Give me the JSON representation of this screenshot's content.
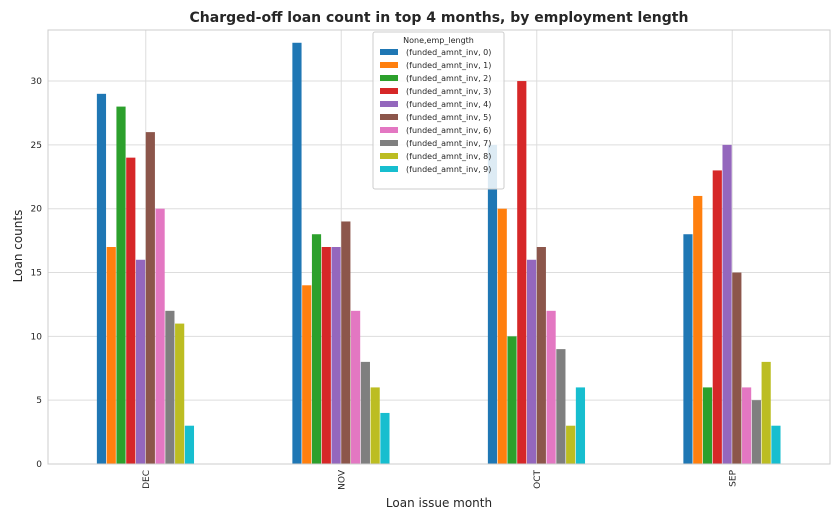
{
  "chart_data": {
    "type": "bar",
    "title": "Charged-off loan count in top 4 months, by employment length",
    "xlabel": "Loan issue month",
    "ylabel": "Loan counts",
    "categories": [
      "DEC",
      "NOV",
      "OCT",
      "SEP"
    ],
    "ylim": [
      0,
      34
    ],
    "yticks": [
      0,
      5,
      10,
      15,
      20,
      25,
      30
    ],
    "grid": true,
    "legend": {
      "title": "None,emp_length",
      "placement": "top-center"
    },
    "series": [
      {
        "name": "(funded_amnt_inv, 0)",
        "color": "#1f77b4",
        "values": [
          29,
          33,
          25,
          18
        ]
      },
      {
        "name": "(funded_amnt_inv, 1)",
        "color": "#ff7f0e",
        "values": [
          17,
          14,
          20,
          21
        ]
      },
      {
        "name": "(funded_amnt_inv, 2)",
        "color": "#2ca02c",
        "values": [
          28,
          18,
          10,
          6
        ]
      },
      {
        "name": "(funded_amnt_inv, 3)",
        "color": "#d62728",
        "values": [
          24,
          17,
          30,
          23
        ]
      },
      {
        "name": "(funded_amnt_inv, 4)",
        "color": "#9467bd",
        "values": [
          16,
          17,
          16,
          25
        ]
      },
      {
        "name": "(funded_amnt_inv, 5)",
        "color": "#8c564b",
        "values": [
          26,
          19,
          17,
          15
        ]
      },
      {
        "name": "(funded_amnt_inv, 6)",
        "color": "#e377c2",
        "values": [
          20,
          12,
          12,
          6
        ]
      },
      {
        "name": "(funded_amnt_inv, 7)",
        "color": "#7f7f7f",
        "values": [
          12,
          8,
          9,
          5
        ]
      },
      {
        "name": "(funded_amnt_inv, 8)",
        "color": "#bcbd22",
        "values": [
          11,
          6,
          3,
          8
        ]
      },
      {
        "name": "(funded_amnt_inv, 9)",
        "color": "#17becf",
        "values": [
          3,
          4,
          6,
          3
        ]
      }
    ]
  }
}
